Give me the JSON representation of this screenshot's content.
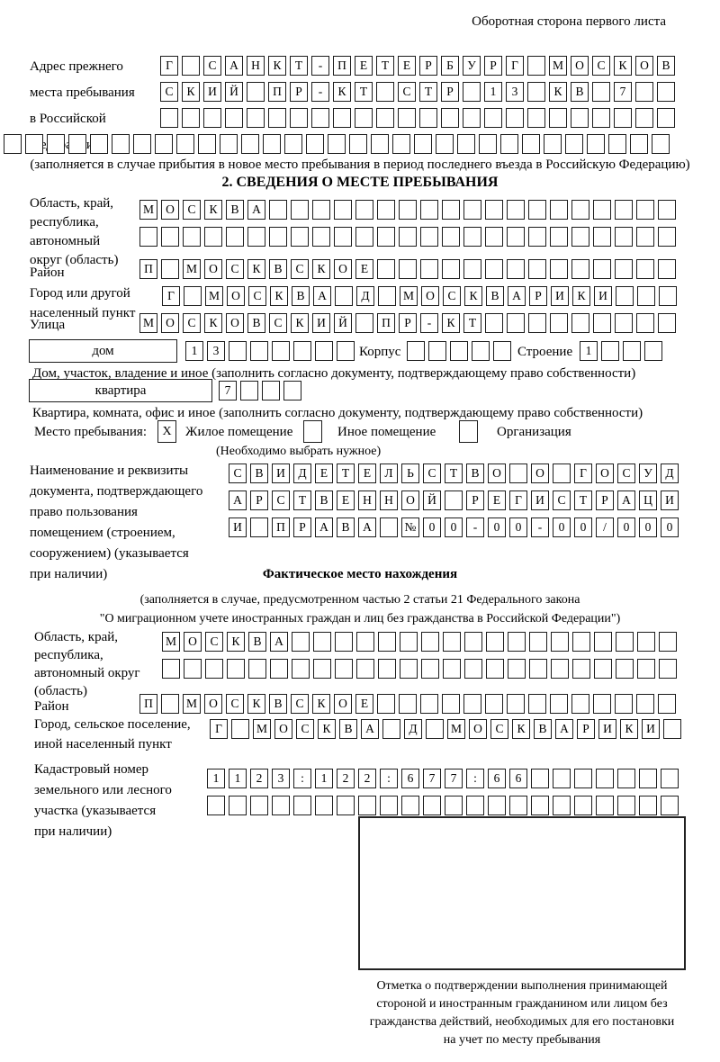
{
  "page": {
    "side_note": "Оборотная сторона первого листа",
    "section2_title": "2. СВЕДЕНИЯ О МЕСТЕ ПРЕБЫВАНИЯ"
  },
  "prev_address": {
    "label_lines": [
      "Адрес прежнего",
      "места пребывания",
      "в Российской",
      "Федерации"
    ],
    "rows": [
      [
        "Г",
        "",
        "С",
        "А",
        "Н",
        "К",
        "Т",
        "-",
        "П",
        "Е",
        "Т",
        "Е",
        "Р",
        "Б",
        "У",
        "Р",
        "Г",
        "",
        "М",
        "О",
        "С",
        "К",
        "О",
        "В"
      ],
      [
        "С",
        "К",
        "И",
        "Й",
        "",
        "П",
        "Р",
        "-",
        "К",
        "Т",
        "",
        "С",
        "Т",
        "Р",
        "",
        "1",
        "3",
        "",
        "К",
        "В",
        "",
        "7",
        "",
        ""
      ],
      [
        "",
        "",
        "",
        "",
        "",
        "",
        "",
        "",
        "",
        "",
        "",
        "",
        "",
        "",
        "",
        "",
        "",
        "",
        "",
        "",
        "",
        "",
        "",
        ""
      ],
      [
        "",
        "",
        "",
        "",
        "",
        "",
        "",
        "",
        "",
        "",
        "",
        "",
        "",
        "",
        "",
        "",
        "",
        "",
        "",
        "",
        "",
        "",
        "",
        "",
        "",
        "",
        "",
        "",
        "",
        "",
        ""
      ]
    ],
    "note": "(заполняется в случае прибытия в новое место пребывания в период последнего въезда в Российскую Федерацию)"
  },
  "stay_place": {
    "region_label_lines": [
      "Область, край,",
      "республика,",
      "автономный",
      "округ (область)"
    ],
    "region_rows": [
      [
        "М",
        "О",
        "С",
        "К",
        "В",
        "А",
        "",
        "",
        "",
        "",
        "",
        "",
        "",
        "",
        "",
        "",
        "",
        "",
        "",
        "",
        "",
        "",
        "",
        "",
        ""
      ],
      [
        "",
        "",
        "",
        "",
        "",
        "",
        "",
        "",
        "",
        "",
        "",
        "",
        "",
        "",
        "",
        "",
        "",
        "",
        "",
        "",
        "",
        "",
        "",
        "",
        ""
      ]
    ],
    "district_label": "Район",
    "district_row": [
      "П",
      "",
      "М",
      "О",
      "С",
      "К",
      "В",
      "С",
      "К",
      "О",
      "Е",
      "",
      "",
      "",
      "",
      "",
      "",
      "",
      "",
      "",
      "",
      "",
      "",
      "",
      ""
    ],
    "city_label_lines": [
      "Город или другой",
      "населенный пункт"
    ],
    "city_row": [
      "Г",
      "",
      "М",
      "О",
      "С",
      "К",
      "В",
      "А",
      "",
      "Д",
      "",
      "М",
      "О",
      "С",
      "К",
      "В",
      "А",
      "Р",
      "И",
      "К",
      "И",
      "",
      "",
      ""
    ],
    "street_label": "Улица",
    "street_row": [
      "М",
      "О",
      "С",
      "К",
      "О",
      "В",
      "С",
      "К",
      "И",
      "Й",
      "",
      "П",
      "Р",
      "-",
      "К",
      "Т",
      "",
      "",
      "",
      "",
      "",
      "",
      "",
      "",
      ""
    ],
    "house_box_label": "дом",
    "house_cells": [
      "1",
      "3",
      "",
      "",
      "",
      "",
      "",
      ""
    ],
    "korpus_label": "Корпус",
    "korpus_cells": [
      "",
      "",
      "",
      "",
      ""
    ],
    "stroenie_label": "Строение",
    "stroenie_cells": [
      "1",
      "",
      "",
      ""
    ],
    "house_note": "Дом, участок, владение и иное (заполнить согласно документу, подтверждающему право собственности)",
    "apartment_box_label": "квартира",
    "apartment_cells": [
      "7",
      "",
      "",
      ""
    ],
    "apartment_note": "Квартира, комната, офис и иное (заполнить согласно документу, подтверждающему право собственности)",
    "type_label": "Место пребывания:",
    "type_options": [
      {
        "checked": "X",
        "label": "Жилое помещение"
      },
      {
        "checked": "",
        "label": "Иное помещение"
      },
      {
        "checked": "",
        "label": "Организация"
      }
    ],
    "type_note": "(Необходимо выбрать нужное)"
  },
  "title_document": {
    "label_lines": [
      "Наименование и реквизиты",
      "документа, подтверждающего",
      "право пользования",
      "помещением (строением,",
      "сооружением) (указывается",
      "при наличии)"
    ],
    "rows": [
      [
        "С",
        "В",
        "И",
        "Д",
        "Е",
        "Т",
        "Е",
        "Л",
        "Ь",
        "С",
        "Т",
        "В",
        "О",
        "",
        "О",
        "",
        "Г",
        "О",
        "С",
        "У",
        "Д"
      ],
      [
        "А",
        "Р",
        "С",
        "Т",
        "В",
        "Е",
        "Н",
        "Н",
        "О",
        "Й",
        "",
        "Р",
        "Е",
        "Г",
        "И",
        "С",
        "Т",
        "Р",
        "А",
        "Ц",
        "И"
      ],
      [
        "И",
        "",
        "П",
        "Р",
        "А",
        "В",
        "А",
        "",
        "№",
        "0",
        "0",
        "-",
        "0",
        "0",
        "-",
        "0",
        "0",
        "/",
        "0",
        "0",
        "0"
      ]
    ]
  },
  "actual_location": {
    "title": "Фактическое место нахождения",
    "note_lines": [
      "(заполняется в случае, предусмотренном частью 2 статьи 21 Федерального закона",
      "\"О миграционном учете иностранных граждан и лиц без гражданства в Российской Федерации\")"
    ],
    "region_label_lines": [
      "Область, край,",
      "республика,",
      "автономный округ",
      "(область)"
    ],
    "region_rows": [
      [
        "М",
        "О",
        "С",
        "К",
        "В",
        "А",
        "",
        "",
        "",
        "",
        "",
        "",
        "",
        "",
        "",
        "",
        "",
        "",
        "",
        "",
        "",
        "",
        "",
        ""
      ],
      [
        "",
        "",
        "",
        "",
        "",
        "",
        "",
        "",
        "",
        "",
        "",
        "",
        "",
        "",
        "",
        "",
        "",
        "",
        "",
        "",
        "",
        "",
        "",
        ""
      ]
    ],
    "district_label": "Район",
    "district_row": [
      "П",
      "",
      "М",
      "О",
      "С",
      "К",
      "В",
      "С",
      "К",
      "О",
      "Е",
      "",
      "",
      "",
      "",
      "",
      "",
      "",
      "",
      "",
      "",
      "",
      "",
      "",
      ""
    ],
    "city_label_lines": [
      "Город, сельское поселение,",
      "иной населенный пункт"
    ],
    "city_row": [
      "Г",
      "",
      "М",
      "О",
      "С",
      "К",
      "В",
      "А",
      "",
      "Д",
      "",
      "М",
      "О",
      "С",
      "К",
      "В",
      "А",
      "Р",
      "И",
      "К",
      "И",
      ""
    ],
    "cadastre_label_lines": [
      "Кадастровый номер",
      "земельного или лесного",
      "участка (указывается",
      "при наличии)"
    ],
    "cadastre_rows": [
      [
        "1",
        "1",
        "2",
        "3",
        ":",
        "1",
        "2",
        "2",
        ":",
        "6",
        "7",
        "7",
        ":",
        "6",
        "6",
        "",
        "",
        "",
        "",
        "",
        "",
        ""
      ],
      [
        "",
        "",
        "",
        "",
        "",
        "",
        "",
        "",
        "",
        "",
        "",
        "",
        "",
        "",
        "",
        "",
        "",
        "",
        "",
        "",
        "",
        ""
      ]
    ]
  },
  "stamp": {
    "caption_lines": [
      "Отметка о подтверждении выполнения принимающей",
      "стороной и иностранным гражданином или лицом без",
      "гражданства действий, необходимых для его постановки",
      "на учет по месту пребывания"
    ]
  }
}
